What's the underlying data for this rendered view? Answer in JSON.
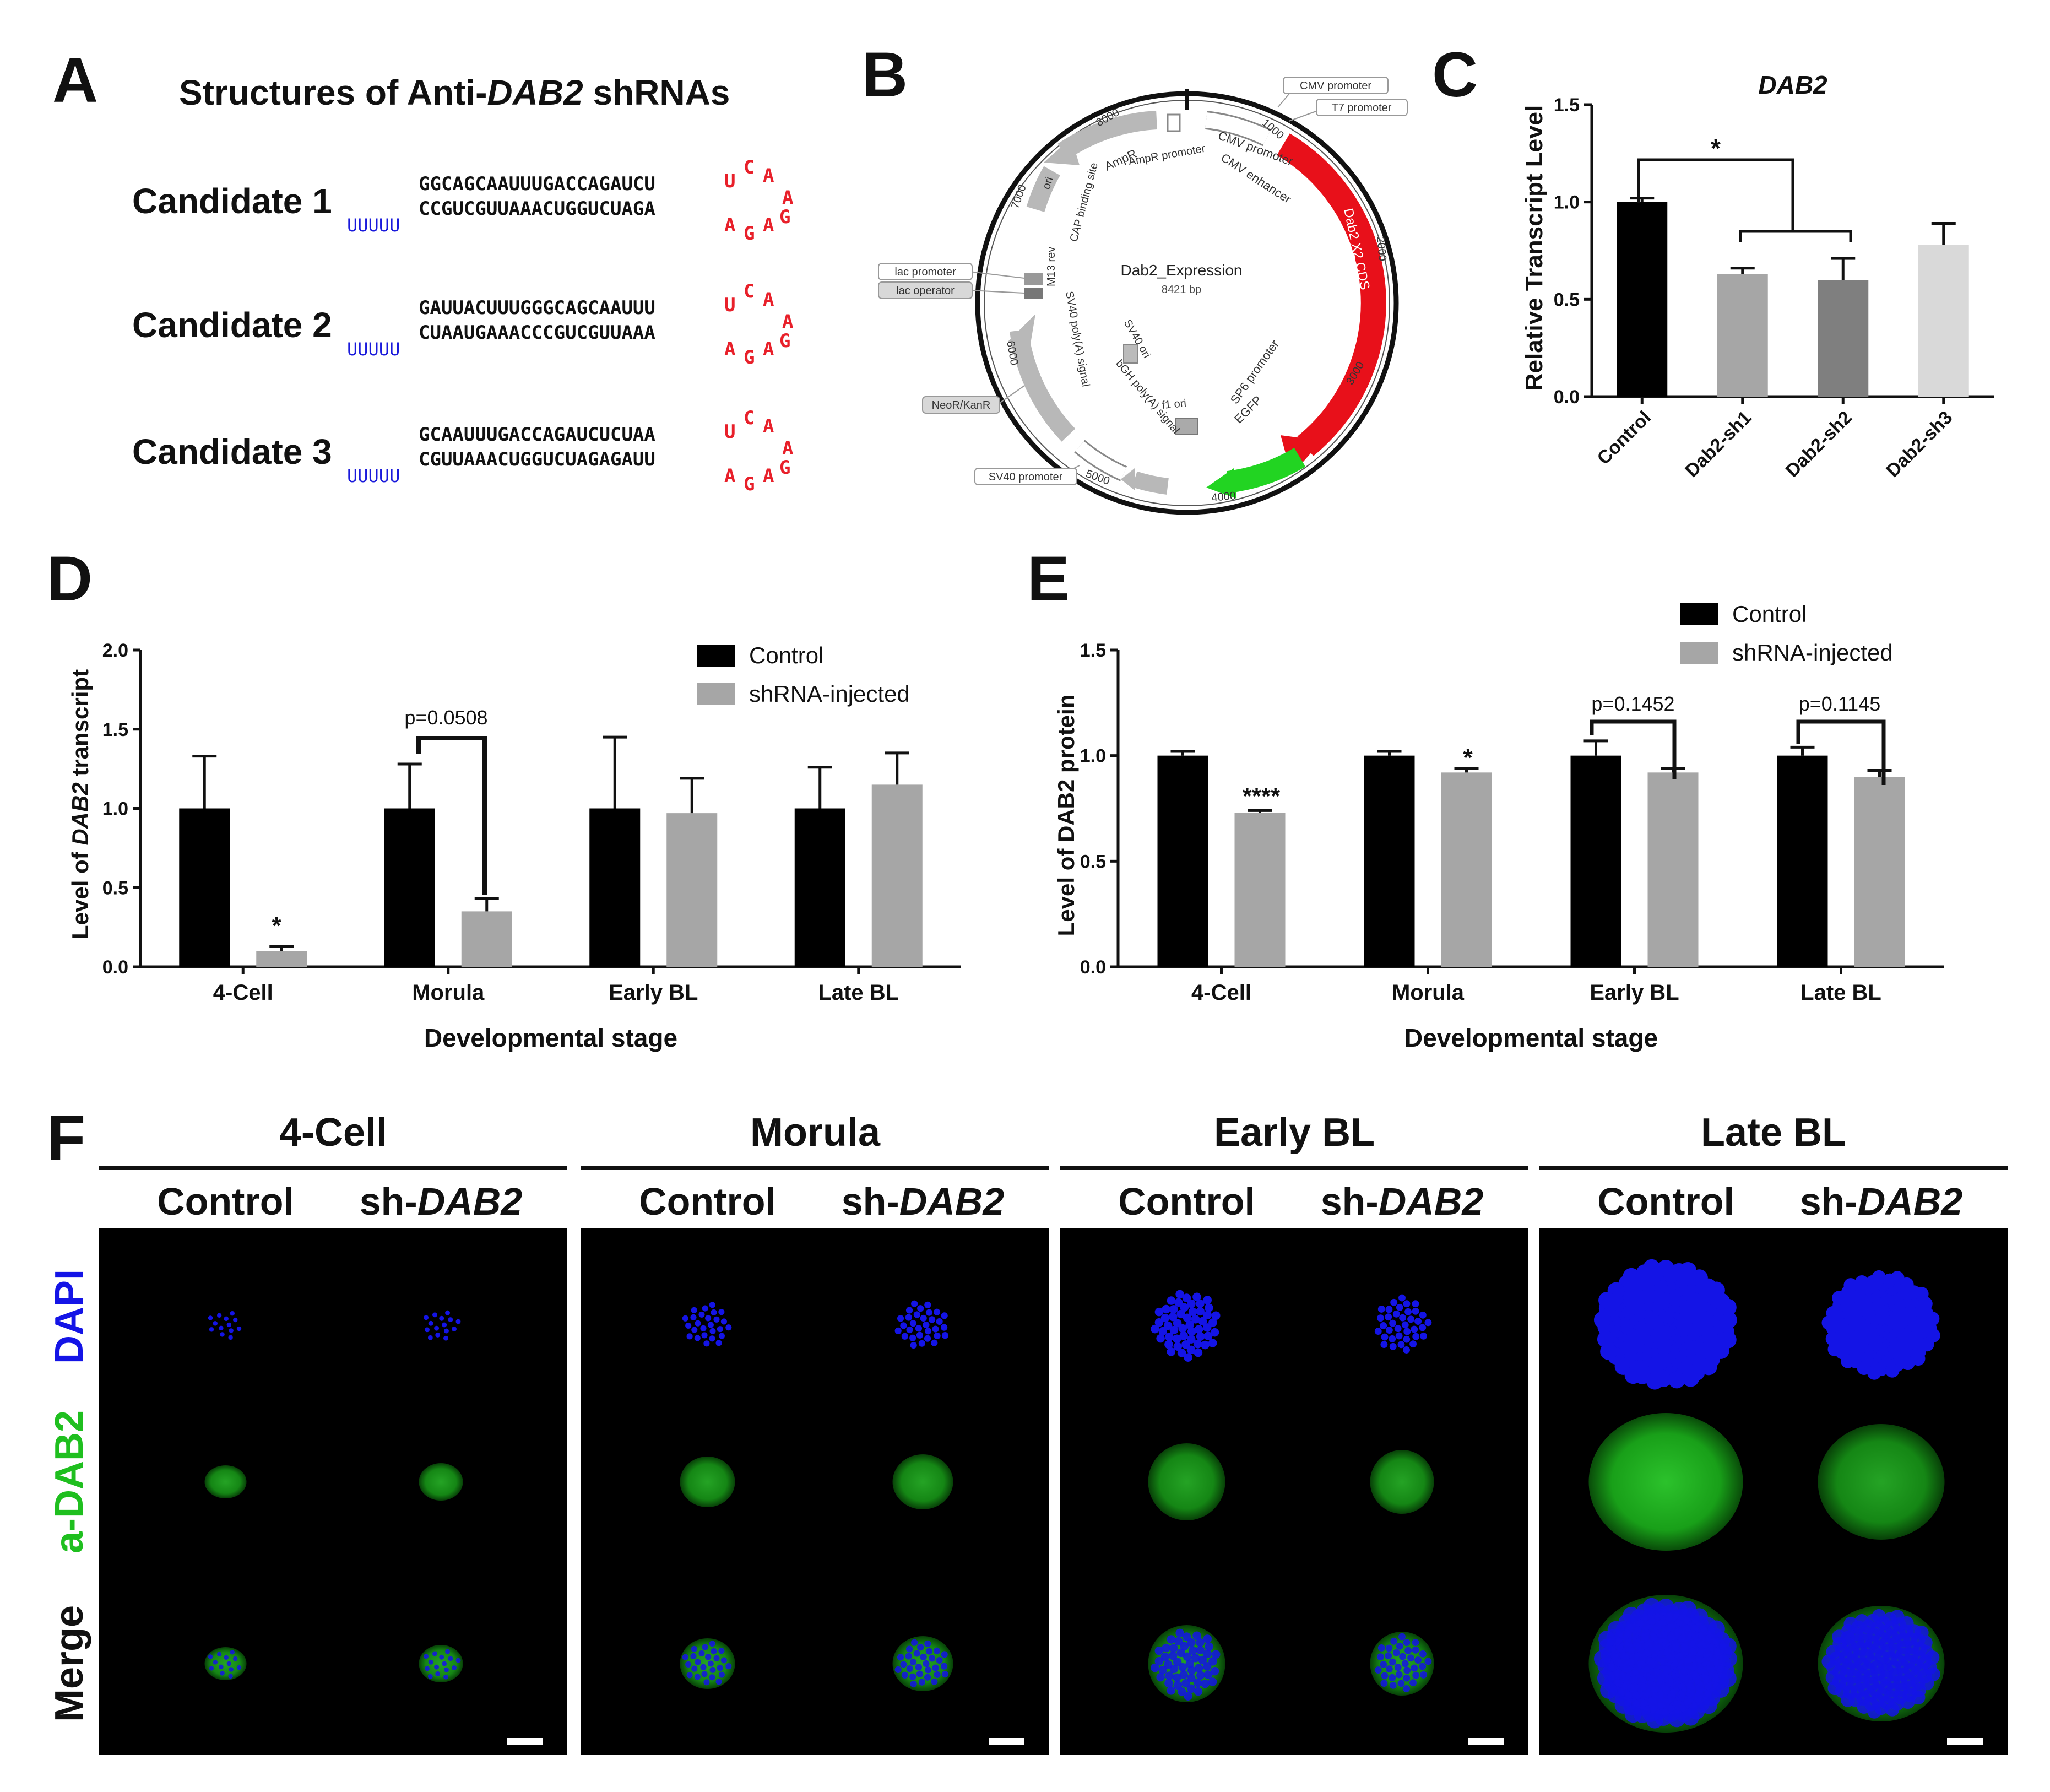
{
  "panels": {
    "A": {
      "letter": "A",
      "title_pre": "Structures of Anti-",
      "title_em": "DAB2",
      "title_post": " shRNAs",
      "candidates": [
        {
          "label": "Candidate 1",
          "top": "GGCAGCAAUUUGACCAGAUCU",
          "bottom": "CCGUCGUUAAACUGGUCUAGA",
          "tail": "UUUUU",
          "loop_top": [
            "U",
            "C",
            "A"
          ],
          "loop_right": "A",
          "loop_bottom": [
            "A",
            "G",
            "A",
            "G"
          ]
        },
        {
          "label": "Candidate 2",
          "top": "GAUUACUUUGGGCAGCAAUUU",
          "bottom": "CUAAUGAAACCCGUCGUUAAA",
          "tail": "UUUUU",
          "loop_top": [
            "U",
            "C",
            "A"
          ],
          "loop_right": "A",
          "loop_bottom": [
            "A",
            "G",
            "A",
            "G"
          ]
        },
        {
          "label": "Candidate 3",
          "top": "GCAAUUUGACCAGAUCUCUAA",
          "bottom": "CGUUAAACUGGUCUAGAGAUU",
          "tail": "UUUUU",
          "loop_top": [
            "U",
            "C",
            "A"
          ],
          "loop_right": "A",
          "loop_bottom": [
            "A",
            "G",
            "A",
            "G"
          ]
        }
      ],
      "colors": {
        "loop": "#e8202a",
        "tail": "#1a1adb",
        "text": "#111111"
      }
    },
    "B": {
      "letter": "B",
      "plasmid_name": "Dab2_Expression",
      "plasmid_size": "8421 bp",
      "ticks": [
        "1000",
        "2000",
        "3000",
        "4000",
        "5000",
        "6000",
        "7000",
        "8000"
      ],
      "callouts": [
        "CMV promoter",
        "T7 promoter",
        "lac promoter",
        "lac operator",
        "NeoR/KanR",
        "SV40 promoter"
      ],
      "features": {
        "cds": "Dab2 X2 CDS",
        "cmv_enhancer": "CMV enhancer",
        "cmv_promoter": "CMV promoter",
        "sp6": "SP6 promoter",
        "egfp": "EGFP",
        "ampr": "AmpR",
        "ampr_promoter": "AmpR promoter",
        "ori": "ori",
        "cap": "CAP binding site",
        "m13": "M13 rev",
        "sv40_polya": "SV40 poly(A) signal",
        "sv40_ori": "SV40 ori",
        "bgh": "bGH poly(A) signal",
        "f1": "f1 ori"
      },
      "colors": {
        "cds": "#e8101a",
        "egfp": "#22d422",
        "feature": "#b8b8b8"
      }
    },
    "C": {
      "letter": "C",
      "title": "DAB2",
      "ylabel": "Relative Transcript Level",
      "sig": "*"
    },
    "D": {
      "letter": "D",
      "xlabel": "Developmental stage",
      "ylabel_pre": "Level of ",
      "ylabel_em": "DAB2",
      "ylabel_post": " transcript",
      "pval": "p=0.0508",
      "sig": "*"
    },
    "E": {
      "letter": "E",
      "xlabel": "Developmental stage",
      "ylabel": "Level of DAB2 protein",
      "sig1": "****",
      "sig2": "*",
      "pval1": "p=0.1452",
      "pval2": "p=0.1145"
    },
    "F": {
      "letter": "F",
      "stages": [
        "4-Cell",
        "Morula",
        "Early BL",
        "Late BL"
      ],
      "col_control": "Control",
      "col_sh_pre": "sh-",
      "col_sh_em": "DAB2",
      "rows": [
        "DAPI",
        "a-DAB2",
        "Merge"
      ],
      "colors": {
        "dapi": "#1414e6",
        "dab2": "#1fbf1f",
        "merge": "#000000",
        "bg": "#000000"
      }
    }
  },
  "chart_data": [
    {
      "type": "bar",
      "panel": "C",
      "title": "DAB2",
      "ylabel": "Relative Transcript Level",
      "categories": [
        "Control",
        "Dab2-sh1",
        "Dab2-sh2",
        "Dab2-sh3"
      ],
      "values": [
        1.0,
        0.63,
        0.6,
        0.78
      ],
      "errors": [
        0.02,
        0.03,
        0.11,
        0.11
      ],
      "colors": [
        "#000000",
        "#a6a6a6",
        "#7f7f7f",
        "#d9d9d9"
      ],
      "yticks": [
        "0.0",
        "0.5",
        "1.0",
        "1.5"
      ],
      "ylim": [
        0,
        1.5
      ]
    },
    {
      "type": "bar",
      "panel": "D",
      "xlabel": "Developmental stage",
      "ylabel": "Level of DAB2 transcript",
      "categories": [
        "4-Cell",
        "Morula",
        "Early BL",
        "Late BL"
      ],
      "series": [
        {
          "name": "Control",
          "values": [
            1.0,
            1.0,
            1.0,
            1.0
          ],
          "errors": [
            0.33,
            0.28,
            0.45,
            0.26
          ],
          "color": "#000000"
        },
        {
          "name": "shRNA-injected",
          "values": [
            0.1,
            0.35,
            0.97,
            1.15
          ],
          "errors": [
            0.03,
            0.08,
            0.22,
            0.2
          ],
          "color": "#a6a6a6"
        }
      ],
      "yticks": [
        "0.0",
        "0.5",
        "1.0",
        "1.5",
        "2.0"
      ],
      "ylim": [
        0,
        2.0
      ],
      "legend": "top-right"
    },
    {
      "type": "bar",
      "panel": "E",
      "xlabel": "Developmental stage",
      "ylabel": "Level of DAB2 protein",
      "categories": [
        "4-Cell",
        "Morula",
        "Early BL",
        "Late BL"
      ],
      "series": [
        {
          "name": "Control",
          "values": [
            1.0,
            1.0,
            1.0,
            1.0
          ],
          "errors": [
            0.02,
            0.02,
            0.07,
            0.04
          ],
          "color": "#000000"
        },
        {
          "name": "shRNA-injected",
          "values": [
            0.73,
            0.92,
            0.92,
            0.9
          ],
          "errors": [
            0.01,
            0.02,
            0.02,
            0.03
          ],
          "color": "#a6a6a6"
        }
      ],
      "yticks": [
        "0.0",
        "0.5",
        "1.0",
        "1.5"
      ],
      "ylim": [
        0,
        1.5
      ],
      "legend": "top-right"
    }
  ]
}
